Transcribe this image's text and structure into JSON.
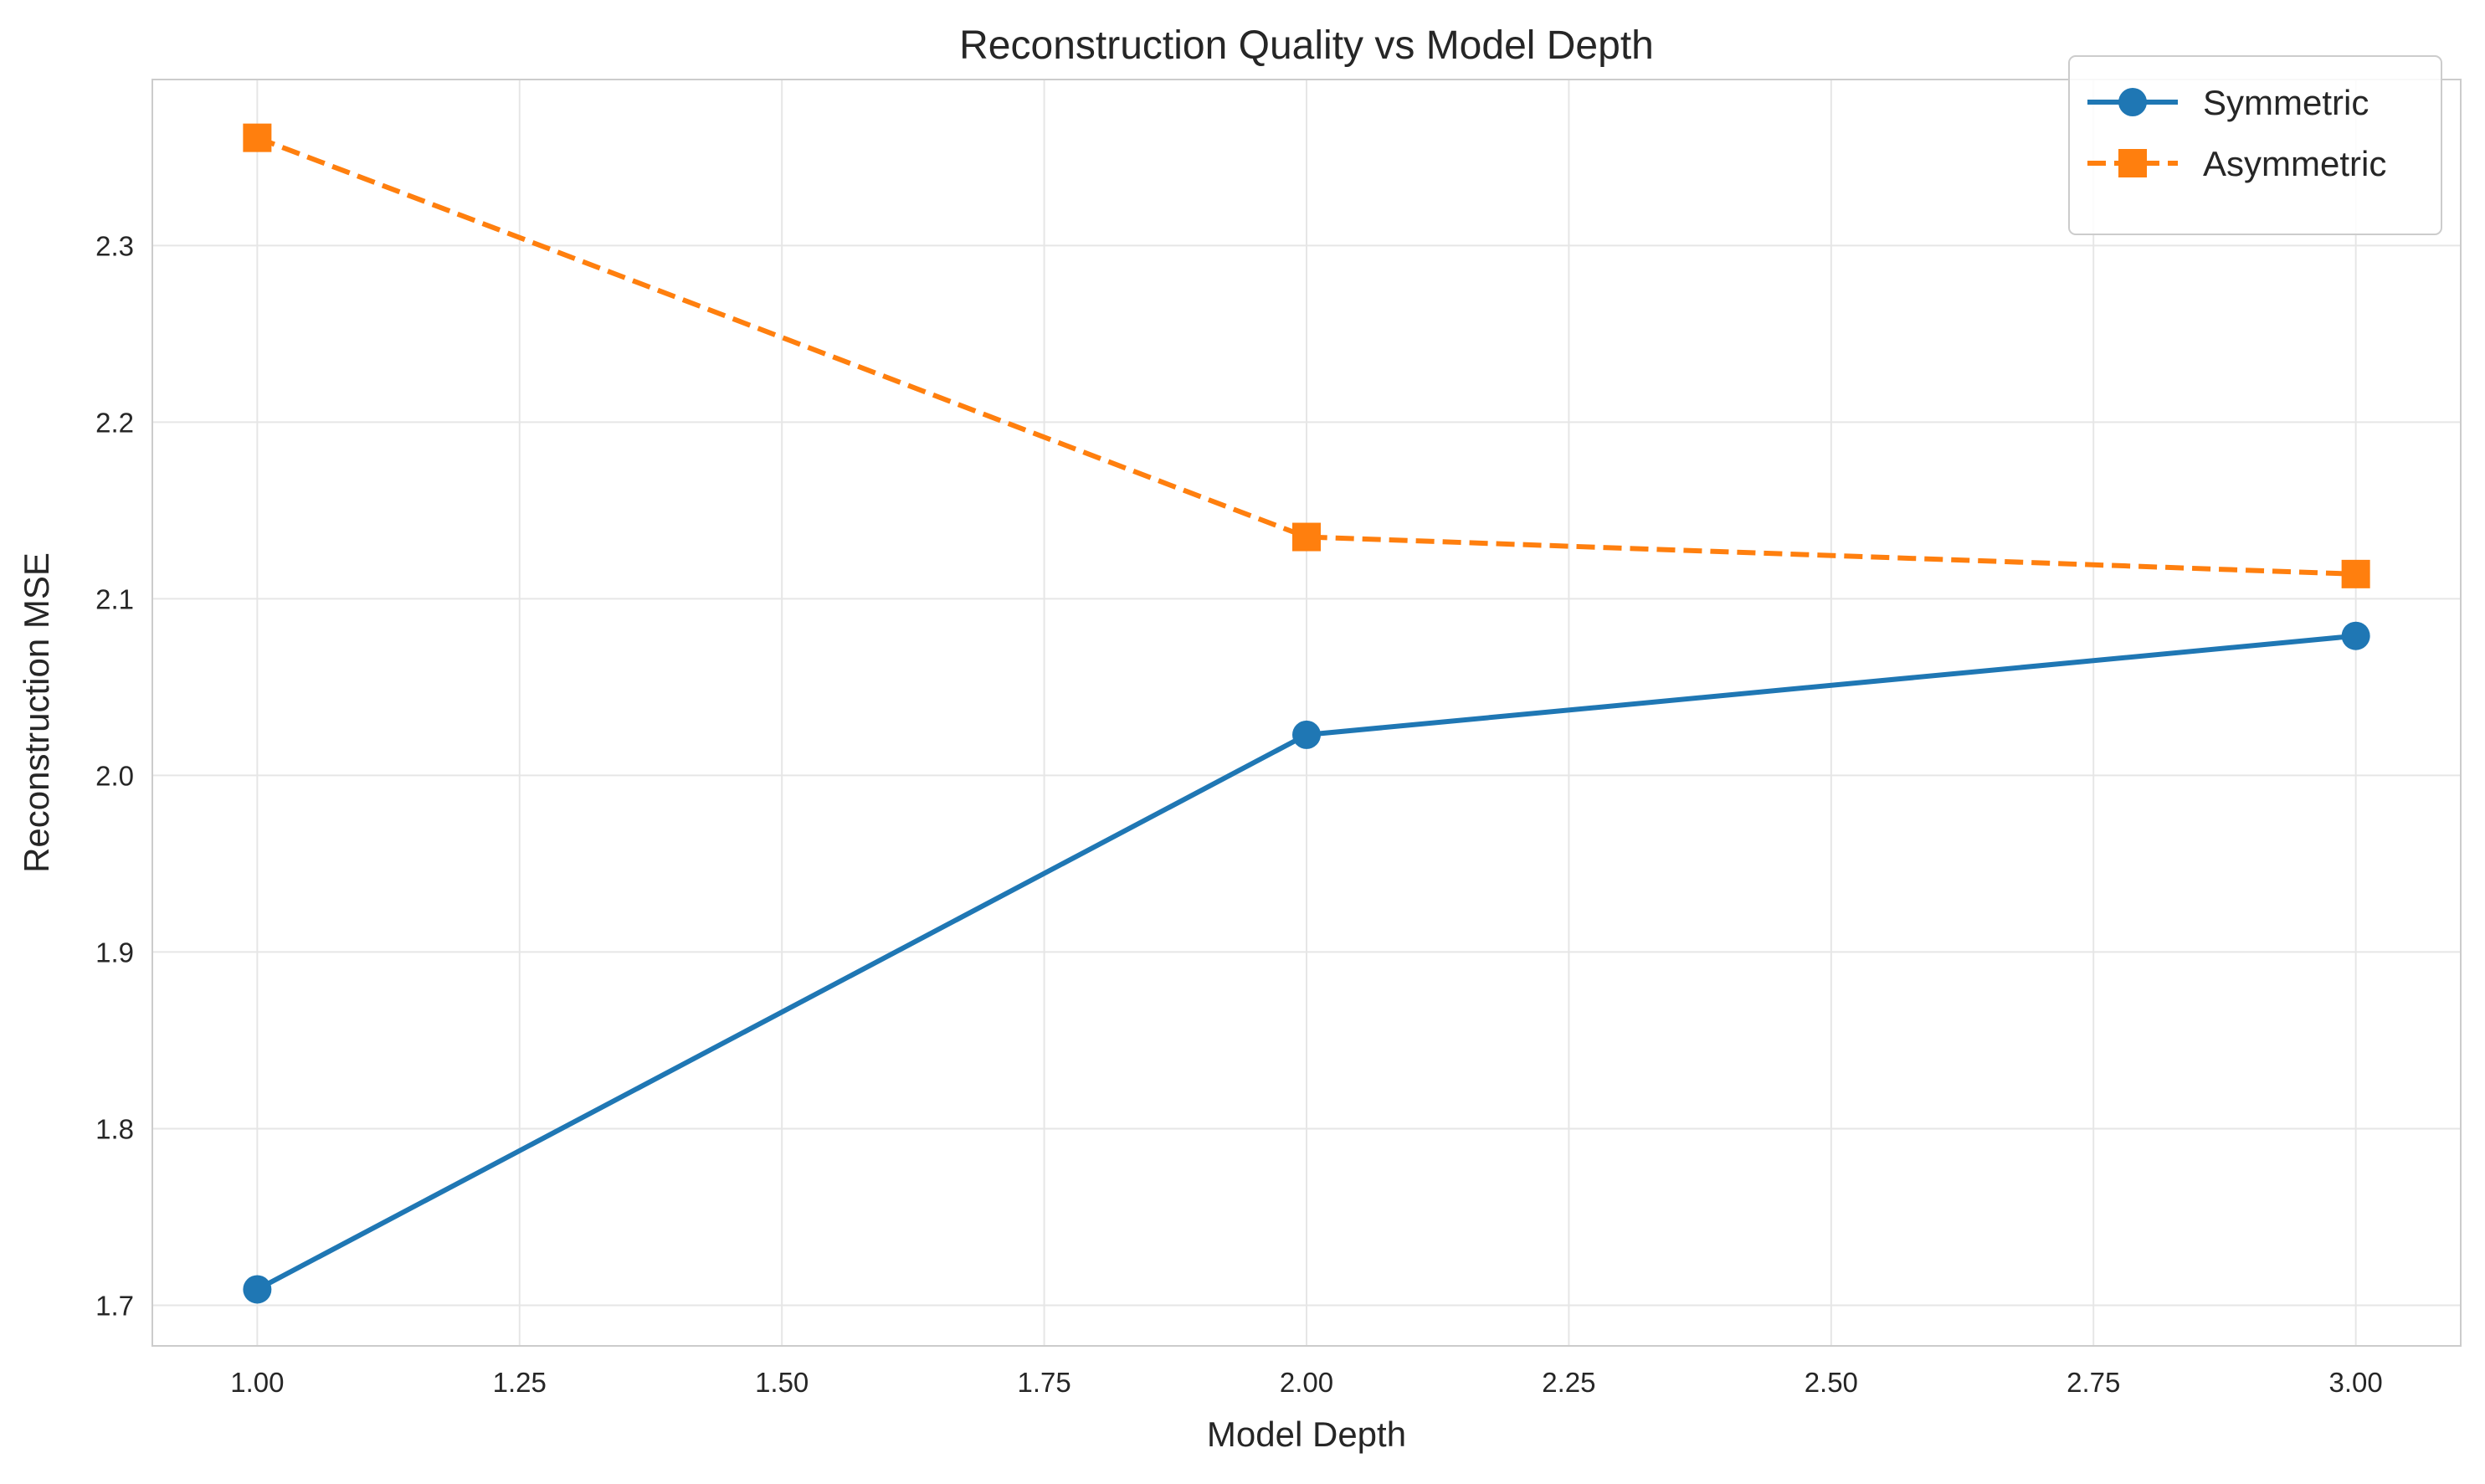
{
  "chart_data": {
    "type": "line",
    "title": "Reconstruction Quality vs Model Depth",
    "xlabel": "Model Depth",
    "ylabel": "Reconstruction MSE",
    "x": [
      1,
      2,
      3
    ],
    "xlim": [
      0.9,
      3.1
    ],
    "ylim": [
      1.677,
      2.394
    ],
    "xticks": [
      "1.00",
      "1.25",
      "1.50",
      "1.75",
      "2.00",
      "2.25",
      "2.50",
      "2.75",
      "3.00"
    ],
    "yticks": [
      "1.7",
      "1.8",
      "1.9",
      "2.0",
      "2.1",
      "2.2",
      "2.3"
    ],
    "grid": true,
    "legend_position": "top-right",
    "series": [
      {
        "name": "Symmetric",
        "values": [
          1.709,
          2.023,
          2.079
        ],
        "color": "#1f77b4",
        "marker": "circle",
        "line_style": "solid"
      },
      {
        "name": "Asymmetric",
        "values": [
          2.361,
          2.135,
          2.114
        ],
        "color": "#ff7f0e",
        "marker": "square",
        "line_style": "dashed"
      }
    ]
  }
}
